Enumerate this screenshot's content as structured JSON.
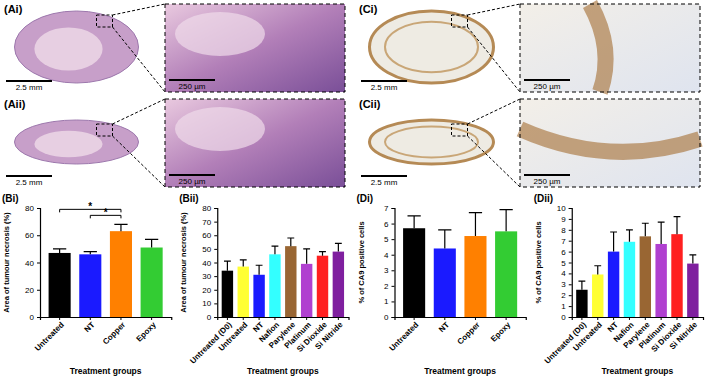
{
  "images": [
    {
      "label": "(Ai)",
      "scale_bars": [
        "2.5 mm",
        "250 µm"
      ]
    },
    {
      "label": "(Aii)",
      "scale_bars": [
        "2.5 mm",
        "250 µm"
      ]
    },
    {
      "label": "(Ci)",
      "scale_bars": [
        "2.5 mm",
        "250 µm"
      ]
    },
    {
      "label": "(Cii)",
      "scale_bars": [
        "2.5 mm",
        "250 µm"
      ]
    }
  ],
  "chart_data": [
    {
      "type": "bar",
      "title": "(Bi)",
      "x_label": "Treatment groups",
      "y_label": "Area of tumour necrosis (%)",
      "categories": [
        "Untreated",
        "NT",
        "Copper",
        "Epoxy"
      ],
      "values": [
        47,
        46,
        63,
        51
      ],
      "errors": [
        3,
        2,
        5,
        6
      ],
      "colors": [
        "#000000",
        "#1a1aff",
        "#ff8000",
        "#33cc33"
      ],
      "ylim": [
        0,
        80
      ],
      "yticks": [
        0,
        20,
        40,
        60,
        80
      ],
      "annotations": [
        {
          "categories": [
            "Untreated",
            "Copper"
          ],
          "label": "*"
        },
        {
          "categories": [
            "NT",
            "Copper"
          ],
          "label": "*"
        }
      ]
    },
    {
      "type": "bar",
      "title": "(Bii)",
      "x_label": "Treatment groups",
      "y_label": "Area of tumour necrosis (%)",
      "categories": [
        "Untreated (D0)",
        "Untreated",
        "NT",
        "Nafion",
        "Parylene",
        "Platinum",
        "Si Dioxide",
        "Si Nitride"
      ],
      "values": [
        34,
        37,
        31,
        46,
        52,
        39,
        45,
        48
      ],
      "errors": [
        7,
        5,
        7,
        6,
        6,
        11,
        3,
        6
      ],
      "colors": [
        "#000000",
        "#ffff33",
        "#1a1aff",
        "#33ffff",
        "#996633",
        "#b040d0",
        "#ff2020",
        "#7f1f9f"
      ],
      "ylim": [
        0,
        80
      ],
      "yticks": [
        0,
        10,
        20,
        30,
        40,
        50,
        60,
        70,
        80
      ]
    },
    {
      "type": "bar",
      "title": "(Di)",
      "x_label": "Treatment groups",
      "y_label": "% of CA9 positive cells",
      "categories": [
        "Untreated",
        "NT",
        "Copper",
        "Epoxy"
      ],
      "values": [
        5.7,
        4.4,
        5.2,
        5.5
      ],
      "errors": [
        0.8,
        1.2,
        1.5,
        1.4
      ],
      "colors": [
        "#000000",
        "#1a1aff",
        "#ff8000",
        "#33cc33"
      ],
      "ylim": [
        0,
        7
      ],
      "yticks": [
        0,
        1,
        2,
        3,
        4,
        5,
        6,
        7
      ]
    },
    {
      "type": "bar",
      "title": "(Dii)",
      "x_label": "Treatment groups",
      "y_label": "% of CA9 positive cells",
      "categories": [
        "Untreated (D0)",
        "Untreated",
        "NT",
        "Nafion",
        "Parylene",
        "Platinum",
        "Si Dioxide",
        "Si Nitride"
      ],
      "values": [
        2.5,
        3.9,
        6.0,
        6.9,
        7.4,
        6.7,
        7.6,
        4.9
      ],
      "errors": [
        0.8,
        0.8,
        1.8,
        1.1,
        1.2,
        2.0,
        1.6,
        0.8
      ],
      "colors": [
        "#000000",
        "#ffff33",
        "#1a1aff",
        "#33ffff",
        "#996633",
        "#b040d0",
        "#ff2020",
        "#7f1f9f"
      ],
      "ylim": [
        0,
        10
      ],
      "yticks": [
        0,
        1,
        2,
        3,
        4,
        5,
        6,
        7,
        8,
        9,
        10
      ]
    }
  ]
}
